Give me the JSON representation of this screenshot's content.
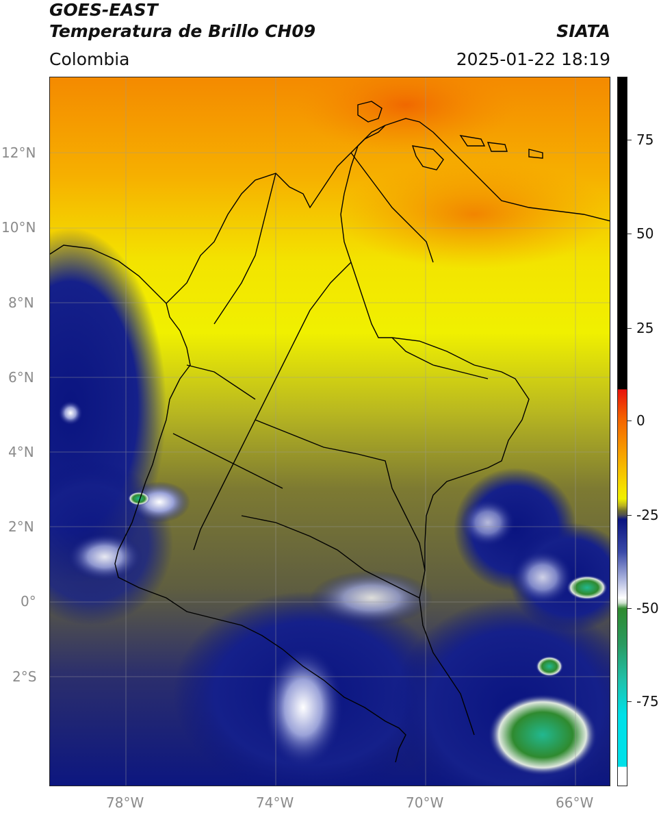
{
  "header": {
    "title_line1": "GOES-EAST",
    "title_line2": "Temperatura de Brillo CH09",
    "region": "Colombia",
    "source": "SIATA",
    "timestamp": "2025-01-22 18:19"
  },
  "map": {
    "lat_labels": [
      "12°N",
      "10°N",
      "8°N",
      "6°N",
      "4°N",
      "2°N",
      "0°",
      "2°S"
    ],
    "lon_labels": [
      "78°W",
      "74°W",
      "70°W",
      "66°W"
    ]
  },
  "colorbar": {
    "tick_labels": [
      "75",
      "50",
      "25",
      "0",
      "-25",
      "-50",
      "-75"
    ],
    "colors": {
      "black": "#000000",
      "red": "#e8120c",
      "orange": "#f7a000",
      "yellow": "#f5f000",
      "olive": "#6e6e30",
      "navy": "#0a1480",
      "white": "#ffffff",
      "green": "#2f8a2f",
      "teal": "#20c0a8",
      "cyan": "#00e0e8"
    }
  }
}
